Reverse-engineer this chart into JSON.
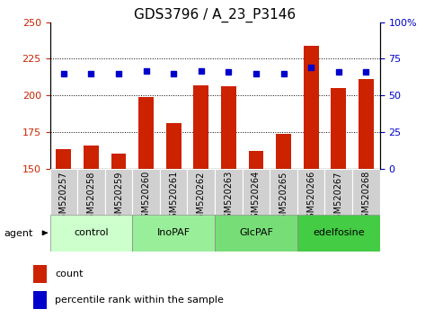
{
  "title": "GDS3796 / A_23_P3146",
  "samples": [
    "GSM520257",
    "GSM520258",
    "GSM520259",
    "GSM520260",
    "GSM520261",
    "GSM520262",
    "GSM520263",
    "GSM520264",
    "GSM520265",
    "GSM520266",
    "GSM520267",
    "GSM520268"
  ],
  "counts": [
    163,
    166,
    160,
    199,
    181,
    207,
    206,
    162,
    174,
    234,
    205,
    211
  ],
  "percentiles": [
    65,
    65,
    65,
    67,
    65,
    67,
    66,
    65,
    65,
    69,
    66,
    66
  ],
  "groups": [
    {
      "label": "control",
      "color": "#ccffcc",
      "start": 0,
      "end": 3
    },
    {
      "label": "InoPAF",
      "color": "#99ee99",
      "start": 3,
      "end": 6
    },
    {
      "label": "GlcPAF",
      "color": "#77dd77",
      "start": 6,
      "end": 9
    },
    {
      "label": "edelfosine",
      "color": "#44cc44",
      "start": 9,
      "end": 12
    }
  ],
  "bar_color": "#cc2200",
  "dot_color": "#0000cc",
  "ylim_left": [
    150,
    250
  ],
  "ylim_right": [
    0,
    100
  ],
  "yticks_left": [
    150,
    175,
    200,
    225,
    250
  ],
  "yticks_right": [
    0,
    25,
    50,
    75,
    100
  ],
  "left_tick_color": "#cc2200",
  "right_tick_color": "#0000cc",
  "title_fontsize": 11,
  "tick_fontsize": 8,
  "label_fontsize": 7,
  "group_fontsize": 8,
  "legend_fontsize": 8,
  "bar_width": 0.55,
  "dot_size": 4
}
